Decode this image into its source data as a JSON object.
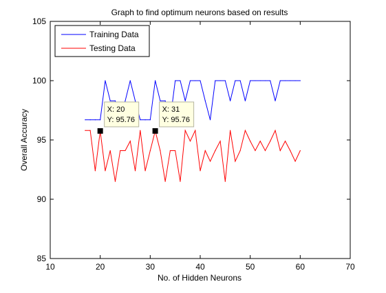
{
  "chart_data": {
    "type": "line",
    "title": "Graph to find optimum neurons based on results",
    "xlabel": "No. of Hidden Neurons",
    "ylabel": "Overall Accuracy",
    "xlim": [
      10,
      70
    ],
    "ylim": [
      85,
      105
    ],
    "xticks": [
      "10",
      "20",
      "30",
      "40",
      "50",
      "60",
      "70"
    ],
    "yticks": [
      "85",
      "90",
      "95",
      "100",
      "105"
    ],
    "grid": false,
    "legend_position": "top-left",
    "x": [
      17,
      18,
      19,
      20,
      21,
      22,
      23,
      24,
      25,
      26,
      27,
      28,
      29,
      30,
      31,
      32,
      33,
      34,
      35,
      36,
      37,
      38,
      39,
      40,
      41,
      42,
      43,
      44,
      45,
      46,
      47,
      48,
      49,
      50,
      51,
      52,
      53,
      54,
      55,
      56,
      57,
      58,
      59,
      60
    ],
    "series": [
      {
        "name": "Training Data",
        "color": "#0000ff",
        "values": [
          96.7,
          96.7,
          96.7,
          96.7,
          100,
          98.3,
          98.3,
          96.7,
          98.3,
          100,
          98.3,
          96.7,
          96.7,
          96.7,
          100,
          98.3,
          98.3,
          96.7,
          100,
          100,
          98.3,
          100,
          100,
          100,
          98.3,
          96.7,
          100,
          100,
          100,
          98.3,
          100,
          100,
          98.3,
          100,
          100,
          100,
          100,
          100,
          98.3,
          100,
          100,
          100,
          100,
          100
        ]
      },
      {
        "name": "Testing Data",
        "color": "#ff0000",
        "values": [
          95.8,
          95.8,
          92.4,
          95.76,
          92.4,
          94.1,
          91.5,
          94.1,
          94.1,
          94.9,
          92.4,
          95.8,
          92.4,
          94.1,
          95.76,
          94.1,
          91.5,
          94.1,
          94.1,
          91.5,
          95.8,
          94.9,
          95.8,
          92.4,
          94.1,
          93.2,
          94.1,
          94.9,
          91.5,
          95.8,
          93.2,
          94.1,
          95.8,
          94.9,
          94.1,
          94.9,
          94.1,
          94.9,
          95.8,
          94.1,
          94.9,
          94.1,
          93.2,
          94.1
        ]
      }
    ],
    "datatips": [
      {
        "x": 20,
        "y": 95.76,
        "line1": "X: 20",
        "line2": "Y: 95.76"
      },
      {
        "x": 31,
        "y": 95.76,
        "line1": "X: 31",
        "line2": "Y: 95.76"
      }
    ]
  }
}
